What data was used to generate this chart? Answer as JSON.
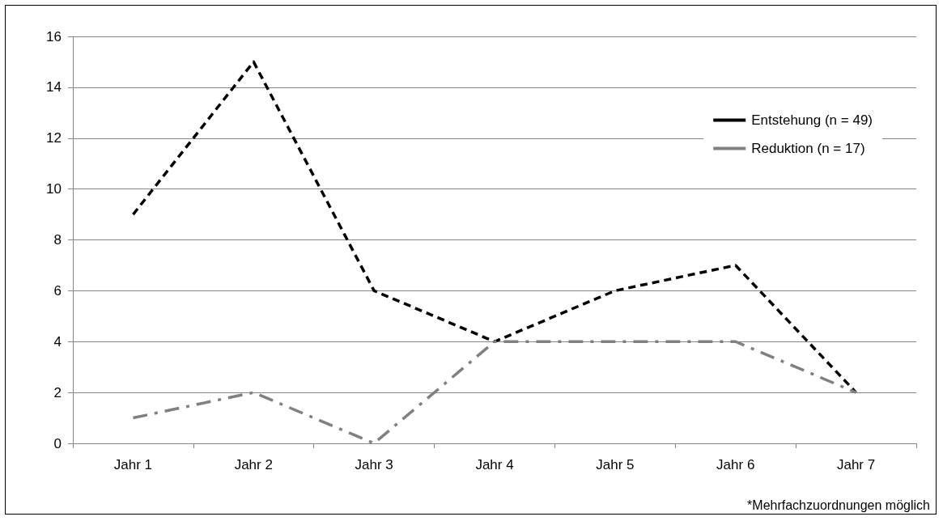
{
  "chart_data": {
    "type": "line",
    "categories": [
      "Jahr 1",
      "Jahr 2",
      "Jahr 3",
      "Jahr 4",
      "Jahr 5",
      "Jahr 6",
      "Jahr 7"
    ],
    "series": [
      {
        "name": "Entstehung (n = 49)",
        "color": "#000000",
        "line_style": "dashed",
        "values": [
          9,
          15,
          6,
          4,
          6,
          7,
          2
        ]
      },
      {
        "name": "Reduktion (n = 17)",
        "color": "#808080",
        "line_style": "dashdot",
        "values": [
          1,
          2,
          0,
          4,
          4,
          4,
          2
        ]
      }
    ],
    "ylim": [
      0,
      16
    ],
    "yticks": [
      0,
      2,
      4,
      6,
      8,
      10,
      12,
      14,
      16
    ],
    "grid": "y",
    "legend": "top right",
    "marker": "none",
    "annotations": [
      "*Mehrfachzuordnungen möglich"
    ]
  }
}
